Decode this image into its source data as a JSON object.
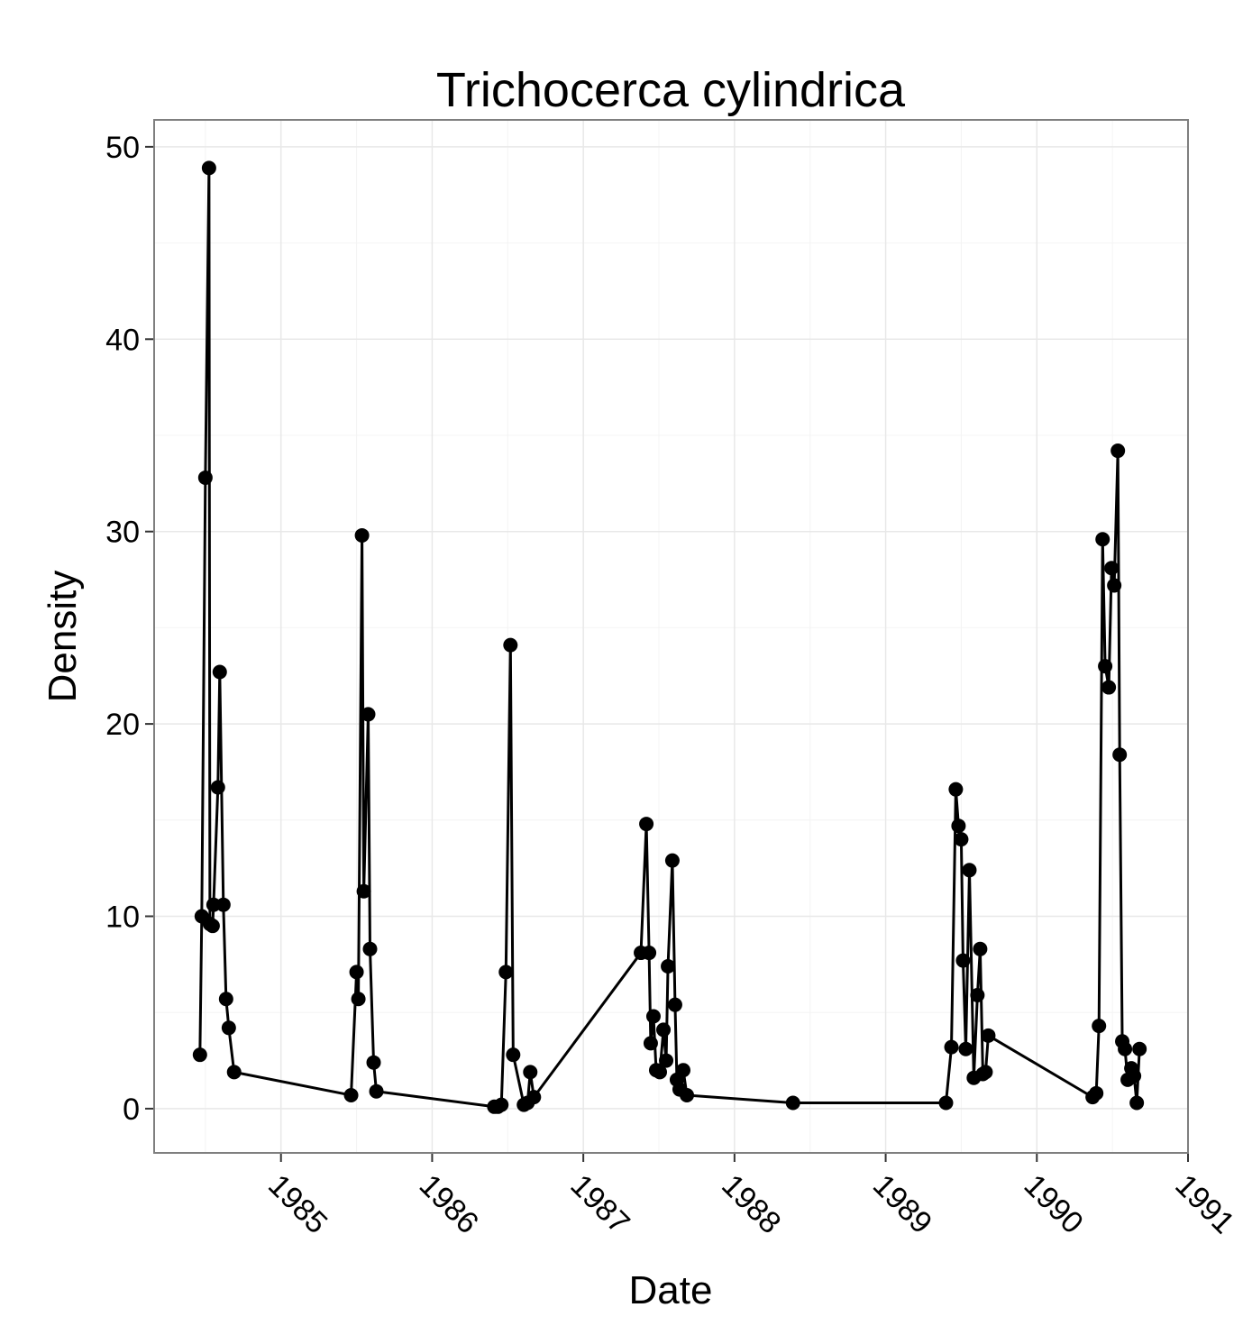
{
  "chart_data": {
    "type": "line",
    "title": "Trichocerca cylindrica",
    "x_label": "Date",
    "y_label": "Density",
    "x": [
      1984.464,
      1984.476,
      1984.5,
      1984.524,
      1984.53,
      1984.548,
      1984.554,
      1984.583,
      1984.595,
      1984.619,
      1984.637,
      1984.655,
      1984.69,
      1985.464,
      1985.5,
      1985.512,
      1985.536,
      1985.548,
      1985.577,
      1985.589,
      1985.613,
      1985.631,
      1986.411,
      1986.435,
      1986.458,
      1986.488,
      1986.518,
      1986.536,
      1986.607,
      1986.631,
      1986.649,
      1986.673,
      1987.381,
      1987.417,
      1987.435,
      1987.446,
      1987.464,
      1987.482,
      1987.506,
      1987.53,
      1987.548,
      1987.56,
      1987.589,
      1987.607,
      1987.619,
      1987.637,
      1987.661,
      1987.685,
      1988.387,
      1989.399,
      1989.435,
      1989.464,
      1989.482,
      1989.5,
      1989.512,
      1989.53,
      1989.554,
      1989.583,
      1989.607,
      1989.625,
      1989.643,
      1989.661,
      1989.679,
      1990.369,
      1990.393,
      1990.411,
      1990.435,
      1990.452,
      1990.476,
      1990.494,
      1990.512,
      1990.536,
      1990.548,
      1990.565,
      1990.583,
      1990.601,
      1990.625,
      1990.643,
      1990.661,
      1990.679
    ],
    "values": [
      2.8,
      10.0,
      32.8,
      48.9,
      9.6,
      9.5,
      10.6,
      16.7,
      22.7,
      10.6,
      5.7,
      4.2,
      1.9,
      0.7,
      7.1,
      5.7,
      29.8,
      11.3,
      20.5,
      8.3,
      2.4,
      0.9,
      0.1,
      0.1,
      0.2,
      7.1,
      24.1,
      2.8,
      0.2,
      0.3,
      1.9,
      0.6,
      8.1,
      14.8,
      8.1,
      3.4,
      4.8,
      2.0,
      1.9,
      4.1,
      2.5,
      7.4,
      12.9,
      5.4,
      1.5,
      1.0,
      2.0,
      0.7,
      0.3,
      0.3,
      3.2,
      16.6,
      14.7,
      14.0,
      7.7,
      3.1,
      12.4,
      1.6,
      5.9,
      8.3,
      1.8,
      1.9,
      3.8,
      0.6,
      0.8,
      4.3,
      29.6,
      23.0,
      21.9,
      28.1,
      27.2,
      34.2,
      18.4,
      3.5,
      3.1,
      1.5,
      2.1,
      1.7,
      0.3,
      3.1
    ],
    "color": "#000000",
    "xlim": [
      1984.161,
      1991
    ],
    "xticks": [
      1985,
      1986,
      1987,
      1988,
      1989,
      1990,
      1991
    ],
    "ylim": [
      -2.3,
      51.4
    ],
    "yticks": [
      0,
      10,
      20,
      30,
      40,
      50
    ],
    "grid": true
  }
}
